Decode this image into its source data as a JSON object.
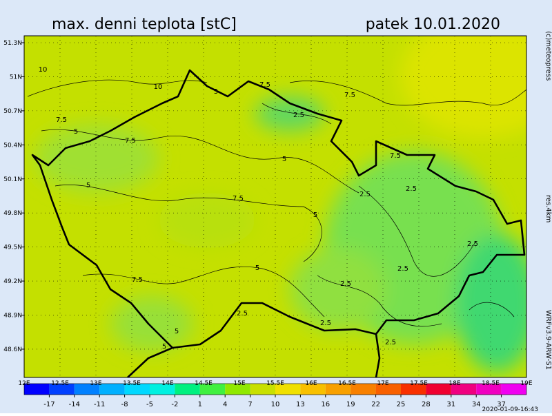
{
  "header": {
    "title": "max. denni teplota [stC]",
    "date": "patek 10.01.2020"
  },
  "side": {
    "copyright": "(c)meteopress",
    "resolution": "res.4km",
    "model": "WRFv3.9-ARW-S1"
  },
  "footer": {
    "run": "2020-01-09-16:43"
  },
  "map": {
    "lat_ticks": [
      {
        "value": 51.3,
        "label": "51.3N"
      },
      {
        "value": 51,
        "label": "51N"
      },
      {
        "value": 50.7,
        "label": "50.7N"
      },
      {
        "value": 50.4,
        "label": "50.4N"
      },
      {
        "value": 50.1,
        "label": "50.1N"
      },
      {
        "value": 49.8,
        "label": "49.8N"
      },
      {
        "value": 49.5,
        "label": "49.5N"
      },
      {
        "value": 49.2,
        "label": "49.2N"
      },
      {
        "value": 48.9,
        "label": "48.9N"
      },
      {
        "value": 48.6,
        "label": "48.6N"
      }
    ],
    "lon_ticks": [
      {
        "value": 12,
        "label": "12E"
      },
      {
        "value": 12.5,
        "label": "12.5E"
      },
      {
        "value": 13,
        "label": "13E"
      },
      {
        "value": 13.5,
        "label": "13.5E"
      },
      {
        "value": 14,
        "label": "14E"
      },
      {
        "value": 14.5,
        "label": "14.5E"
      },
      {
        "value": 15,
        "label": "15E"
      },
      {
        "value": 15.5,
        "label": "15.5E"
      },
      {
        "value": 16,
        "label": "16E"
      },
      {
        "value": 16.5,
        "label": "16.5E"
      },
      {
        "value": 17,
        "label": "17E"
      },
      {
        "value": 17.5,
        "label": "17.5E"
      },
      {
        "value": 18,
        "label": "18E"
      },
      {
        "value": 18.5,
        "label": "18.5E"
      },
      {
        "value": 19,
        "label": "19E"
      }
    ],
    "contour_labels": [
      10,
      10,
      7.5,
      7.5,
      7.5,
      7.5,
      5,
      5,
      2.5,
      5,
      7.5,
      5,
      2.5,
      2.5,
      7.5,
      5,
      2.5,
      5,
      2.5,
      7.5,
      2.5,
      2.5,
      2.5,
      5,
      5,
      2.5
    ]
  },
  "colorbar": {
    "ticks": [
      -17,
      -14,
      -11,
      -8,
      -5,
      -2,
      1,
      4,
      7,
      10,
      13,
      16,
      19,
      22,
      25,
      28,
      31,
      34,
      37
    ],
    "colors": [
      "#0000ff",
      "#0040ff",
      "#0080ff",
      "#00b0ff",
      "#00d8ff",
      "#00f0e0",
      "#00f080",
      "#40f040",
      "#90e800",
      "#c8e000",
      "#f0e000",
      "#f8c000",
      "#f8a000",
      "#f88000",
      "#f86000",
      "#f83000",
      "#f00030",
      "#f00080",
      "#f000c0",
      "#f000f0"
    ]
  }
}
